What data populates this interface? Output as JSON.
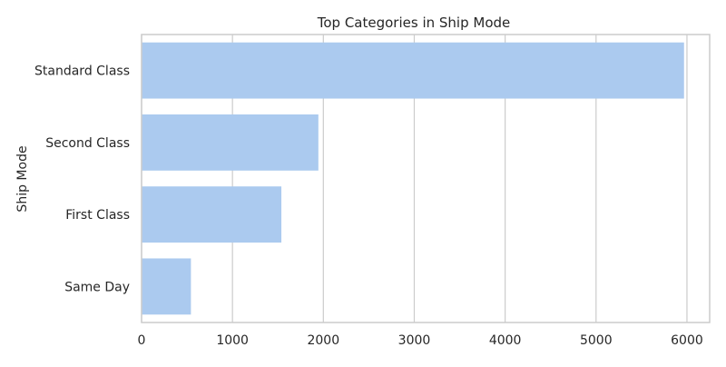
{
  "chart_data": {
    "type": "bar",
    "orientation": "horizontal",
    "title": "Top Categories in Ship Mode",
    "xlabel": "",
    "ylabel": "Ship Mode",
    "categories": [
      "Standard Class",
      "Second Class",
      "First Class",
      "Same Day"
    ],
    "values": [
      5968,
      1945,
      1538,
      543
    ],
    "xlim": [
      0,
      6250
    ],
    "xticks": [
      0,
      1000,
      2000,
      3000,
      4000,
      5000,
      6000
    ],
    "grid": "vertical",
    "legend": "none",
    "bar_color": "#abcaef",
    "grid_color": "#cccccc",
    "frame_color": "#cccccc"
  }
}
